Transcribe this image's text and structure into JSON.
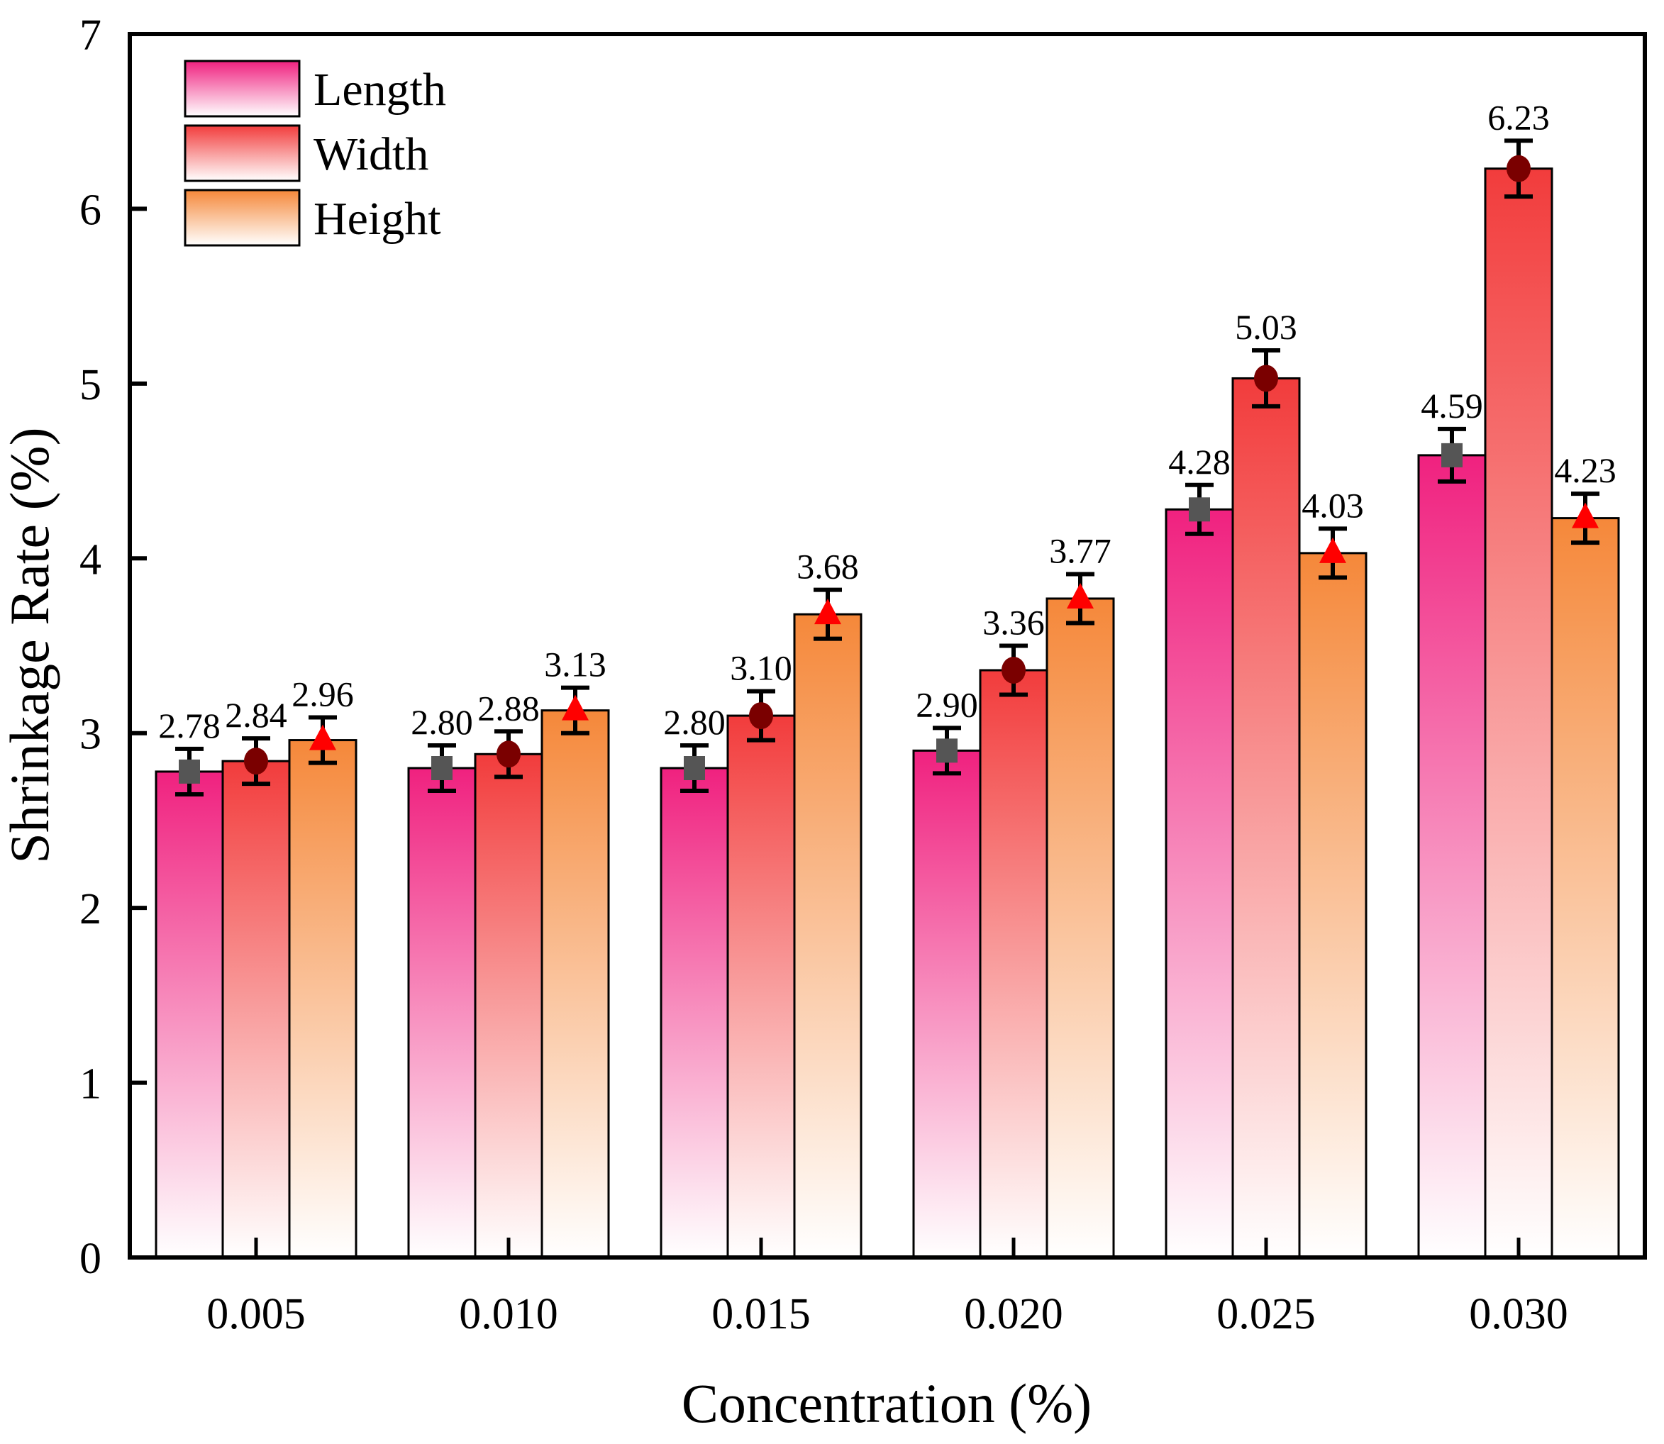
{
  "chart_data": {
    "type": "bar",
    "title": "",
    "xlabel": "Concentration (%)",
    "ylabel": "Shrinkage Rate (%)",
    "ylim": [
      0,
      7
    ],
    "yticks": [
      "0",
      "1",
      "2",
      "3",
      "4",
      "5",
      "6",
      "7"
    ],
    "categories": [
      "0.005",
      "0.010",
      "0.015",
      "0.020",
      "0.025",
      "0.030"
    ],
    "series": [
      {
        "name": "Length",
        "values": [
          2.78,
          2.8,
          2.8,
          2.9,
          4.28,
          4.59
        ],
        "labels": [
          "2.78",
          "2.80",
          "2.80",
          "2.90",
          "4.28",
          "4.59"
        ],
        "error": [
          0.13,
          0.13,
          0.13,
          0.13,
          0.14,
          0.15
        ],
        "color": "#f0217f",
        "marker": "square",
        "marker_color": "#555555"
      },
      {
        "name": "Width",
        "values": [
          2.84,
          2.88,
          3.1,
          3.36,
          5.03,
          6.23
        ],
        "labels": [
          "2.84",
          "2.88",
          "3.10",
          "3.36",
          "5.03",
          "6.23"
        ],
        "error": [
          0.13,
          0.13,
          0.14,
          0.14,
          0.16,
          0.16
        ],
        "color": "#f23c3c",
        "marker": "circle",
        "marker_color": "#7a0000"
      },
      {
        "name": "Height",
        "values": [
          2.96,
          3.13,
          3.68,
          3.77,
          4.03,
          4.23
        ],
        "labels": [
          "2.96",
          "3.13",
          "3.68",
          "3.77",
          "4.03",
          "4.23"
        ],
        "error": [
          0.13,
          0.13,
          0.14,
          0.14,
          0.14,
          0.14
        ],
        "color": "#f5883a",
        "marker": "triangle",
        "marker_color": "#ff0000"
      }
    ],
    "legend": {
      "position": "top-left",
      "entries": [
        "Length",
        "Width",
        "Height"
      ]
    },
    "grid": false
  }
}
